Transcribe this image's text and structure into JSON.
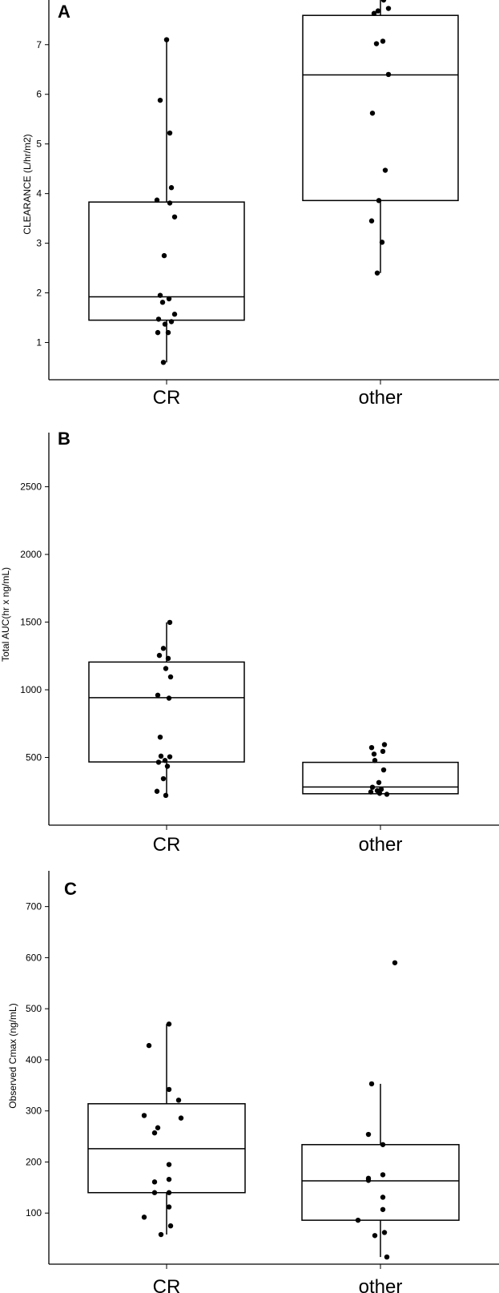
{
  "chart_data": [
    {
      "type": "box",
      "panel_label": "A",
      "ylabel": "CLEARANCE (L/hr/m2)",
      "categories": [
        "CR",
        "other"
      ],
      "yticks": [
        1,
        2,
        3,
        4,
        5,
        6,
        7
      ],
      "ylim": [
        0.25,
        7.9
      ],
      "boxes": [
        {
          "category": "CR",
          "q1": 1.45,
          "median": 1.92,
          "q3": 3.83,
          "whisker_low": 0.6,
          "whisker_high": 7.1,
          "points": [
            7.1,
            5.88,
            5.22,
            4.12,
            3.87,
            3.81,
            3.53,
            2.75,
            1.95,
            1.88,
            1.81,
            1.57,
            1.47,
            1.42,
            1.37,
            1.2,
            1.2,
            0.6
          ]
        },
        {
          "category": "other",
          "q1": 3.86,
          "median": 6.39,
          "q3": 7.59,
          "whisker_low": 2.4,
          "whisker_high": 7.9,
          "points": [
            7.9,
            7.73,
            7.68,
            7.63,
            7.07,
            7.02,
            6.4,
            5.62,
            4.47,
            3.86,
            3.45,
            3.02,
            2.4
          ]
        }
      ]
    },
    {
      "type": "box",
      "panel_label": "B",
      "ylabel": "Total AUC(hr x ng/mL)",
      "categories": [
        "CR",
        "other"
      ],
      "yticks": [
        500,
        1000,
        1500,
        2000,
        2500
      ],
      "ylim": [
        0,
        2900
      ],
      "boxes": [
        {
          "category": "CR",
          "q1": 467,
          "median": 942,
          "q3": 1205,
          "whisker_low": 220,
          "whisker_high": 1498,
          "points": [
            1498,
            1306,
            1254,
            1232,
            1157,
            1095,
            960,
            938,
            650,
            510,
            505,
            478,
            465,
            435,
            343,
            250,
            220
          ]
        },
        {
          "category": "other",
          "q1": 232,
          "median": 282,
          "q3": 464,
          "whisker_low": 232,
          "whisker_high": 464,
          "points": [
            595,
            573,
            545,
            525,
            478,
            408,
            315,
            280,
            265,
            255,
            245,
            235,
            228
          ]
        }
      ]
    },
    {
      "type": "box",
      "panel_label": "C",
      "ylabel": "Observed Cmax (ng/mL)",
      "categories": [
        "CR",
        "other"
      ],
      "yticks": [
        100,
        200,
        300,
        400,
        500,
        600,
        700
      ],
      "ylim": [
        0,
        770
      ],
      "boxes": [
        {
          "category": "CR",
          "q1": 140,
          "median": 226,
          "q3": 314,
          "whisker_low": 58,
          "whisker_high": 470,
          "points": [
            470,
            428,
            342,
            321,
            291,
            286,
            267,
            257,
            195,
            166,
            161,
            140,
            140,
            112,
            92,
            75,
            58
          ]
        },
        {
          "category": "other",
          "q1": 86,
          "median": 163,
          "q3": 234,
          "whisker_low": 14,
          "whisker_high": 353,
          "points": [
            590,
            353,
            254,
            234,
            175,
            168,
            164,
            131,
            107,
            86,
            62,
            56,
            14
          ]
        }
      ]
    }
  ]
}
